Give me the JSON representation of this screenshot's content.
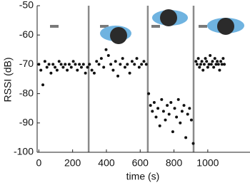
{
  "chart_data": {
    "type": "scatter",
    "x_label": "time (s)",
    "y_label": "RSSI (dB)",
    "xlim": [
      -10,
      1250
    ],
    "ylim": [
      -100,
      -50
    ],
    "xticks": [
      0,
      200,
      400,
      600,
      800,
      1000
    ],
    "yticks": [
      -50,
      -60,
      -70,
      -80,
      -90,
      -100
    ],
    "dividers": [
      295,
      645,
      916
    ],
    "series": [
      {
        "color": "#111111",
        "x": [
          0,
          12,
          24,
          36,
          48,
          60,
          72,
          84,
          96,
          108,
          120,
          132,
          144,
          156,
          168,
          180,
          192,
          204,
          216,
          228,
          240,
          252,
          264,
          276,
          288,
          300,
          314,
          328,
          342,
          356,
          370,
          384,
          398,
          412,
          426,
          440,
          454,
          468,
          482,
          496,
          510,
          524,
          538,
          552,
          566,
          580,
          594,
          608,
          622,
          636,
          650,
          661,
          672,
          683,
          694,
          705,
          716,
          727,
          738,
          749,
          760,
          771,
          782,
          793,
          804,
          815,
          826,
          837,
          848,
          859,
          870,
          881,
          892,
          903,
          914,
          930,
          937,
          944,
          951,
          958,
          965,
          972,
          979,
          986,
          993,
          1000,
          1007,
          1014,
          1021,
          1028,
          1035,
          1042,
          1049,
          1056,
          1063,
          1070,
          1077,
          1084,
          1091,
          1098
        ],
        "values": [
          -70,
          -72,
          -77,
          -69,
          -71,
          -70,
          -73,
          -70,
          -71,
          -72,
          -69,
          -70,
          -71,
          -70,
          -72,
          -70,
          -71,
          -69,
          -70,
          -72,
          -70,
          -71,
          -70,
          -73,
          -71,
          -70,
          -72,
          -73,
          -69,
          -70,
          -68,
          -71,
          -65,
          -67,
          -70,
          -72,
          -69,
          -74,
          -70,
          -68,
          -71,
          -70,
          -73,
          -69,
          -70,
          -68,
          -71,
          -70,
          -69,
          -70,
          -80,
          -84,
          -86,
          -83,
          -88,
          -85,
          -91,
          -82,
          -86,
          -89,
          -84,
          -87,
          -83,
          -93,
          -85,
          -88,
          -82,
          -90,
          -86,
          -84,
          -95,
          -87,
          -85,
          -89,
          -97,
          -69,
          -70,
          -68,
          -71,
          -70,
          -69,
          -72,
          -70,
          -68,
          -69,
          -71,
          -70,
          -67,
          -70,
          -69,
          -71,
          -68,
          -70,
          -69,
          -70,
          -72,
          -69,
          -70,
          -68,
          -70
        ]
      }
    ]
  }
}
